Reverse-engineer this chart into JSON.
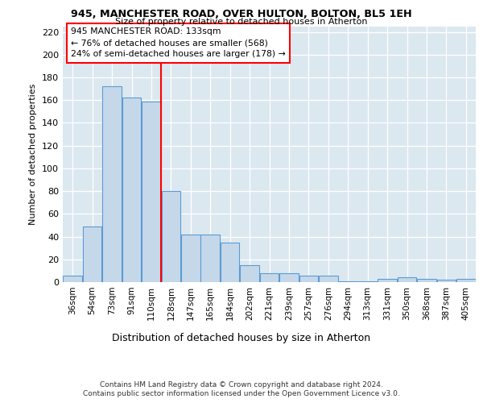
{
  "title1": "945, MANCHESTER ROAD, OVER HULTON, BOLTON, BL5 1EH",
  "title2": "Size of property relative to detached houses in Atherton",
  "xlabel": "Distribution of detached houses by size in Atherton",
  "ylabel": "Number of detached properties",
  "categories": [
    "36sqm",
    "54sqm",
    "73sqm",
    "91sqm",
    "110sqm",
    "128sqm",
    "147sqm",
    "165sqm",
    "184sqm",
    "202sqm",
    "221sqm",
    "239sqm",
    "257sqm",
    "276sqm",
    "294sqm",
    "313sqm",
    "331sqm",
    "350sqm",
    "368sqm",
    "387sqm",
    "405sqm"
  ],
  "values": [
    6,
    49,
    172,
    162,
    159,
    80,
    42,
    42,
    35,
    15,
    8,
    8,
    6,
    6,
    1,
    1,
    3,
    4,
    3,
    2,
    3
  ],
  "bar_color": "#c5d8ea",
  "bar_edge_color": "#5b9bd5",
  "annotation_line1": "945 MANCHESTER ROAD: 133sqm",
  "annotation_line2": "← 76% of detached houses are smaller (568)",
  "annotation_line3": "24% of semi-detached houses are larger (178) →",
  "vline_index": 4.5,
  "ylim_max": 225,
  "yticks": [
    0,
    20,
    40,
    60,
    80,
    100,
    120,
    140,
    160,
    180,
    200,
    220
  ],
  "bg_color": "#dce8f0",
  "footer1": "Contains HM Land Registry data © Crown copyright and database right 2024.",
  "footer2": "Contains public sector information licensed under the Open Government Licence v3.0."
}
